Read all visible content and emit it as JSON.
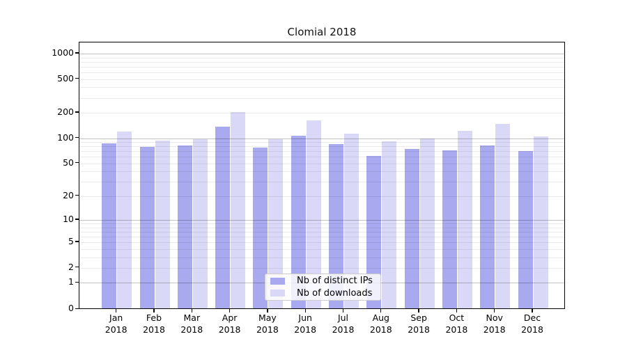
{
  "page": {
    "background": "#ffffff",
    "axis_color": "#000000"
  },
  "chart_data": {
    "type": "bar",
    "title": "Clomial 2018",
    "xlabel": "",
    "ylabel": "",
    "categories": [
      "Jan",
      "Feb",
      "Mar",
      "Apr",
      "May",
      "Jun",
      "Jul",
      "Aug",
      "Sep",
      "Oct",
      "Nov",
      "Dec"
    ],
    "x_tick_year": "2018",
    "series": [
      {
        "name": "Nb of distinct IPs",
        "color": "#a9a9ef",
        "values": [
          87,
          79,
          82,
          137,
          78,
          106,
          85,
          62,
          74,
          71,
          82,
          70
        ]
      },
      {
        "name": "Nb of downloads",
        "color": "#d9d9f7",
        "values": [
          119,
          94,
          97,
          203,
          97,
          162,
          113,
          92,
          99,
          122,
          149,
          104
        ]
      }
    ],
    "yscale": "log10(value+1)",
    "yticks": [
      0,
      1,
      2,
      5,
      10,
      20,
      50,
      100,
      200,
      500,
      1000
    ],
    "ylim": [
      0,
      1300
    ],
    "grid": "on",
    "grid_on_top_of_bars": true,
    "major_gridline_values": [
      1,
      10,
      100,
      1000
    ],
    "major_grid_color": "rgba(0,0,0,0.24)",
    "minor_grid_color": "rgba(0,0,0,0.08)",
    "legend_position": "lower-center"
  }
}
